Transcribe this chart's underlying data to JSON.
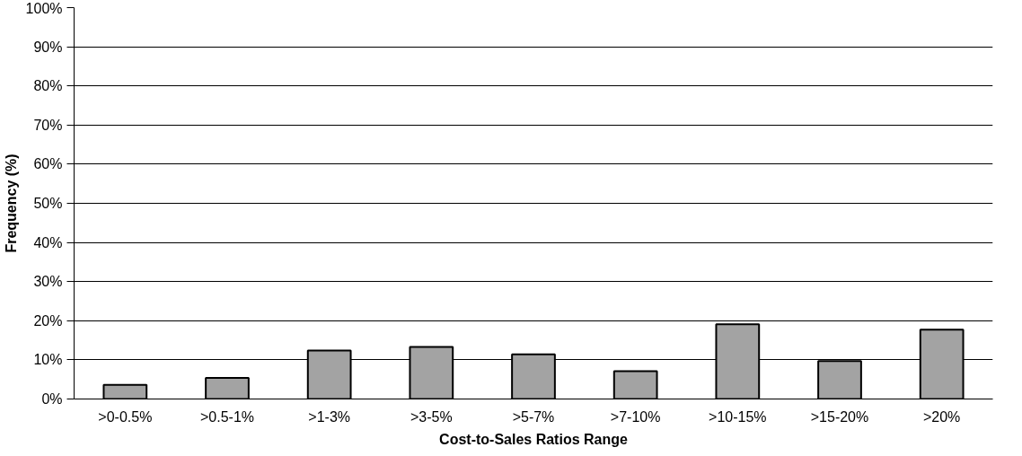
{
  "chart_data": {
    "type": "bar",
    "xlabel": "Cost-to-Sales Ratios Range",
    "ylabel": "Frequency (%)",
    "categories": [
      ">0-0.5%",
      ">0.5-1%",
      ">1-3%",
      ">3-5%",
      ">5-7%",
      ">7-10%",
      ">10-15%",
      ">15-20%",
      ">20%"
    ],
    "values": [
      3.6,
      5.4,
      12.4,
      13.3,
      11.4,
      7.1,
      19.1,
      9.7,
      17.7
    ],
    "color": "#a3a3a3",
    "ylim": [
      0,
      100
    ],
    "yticks": [
      {
        "value": 0,
        "label": "0%"
      },
      {
        "value": 10,
        "label": "10%"
      },
      {
        "value": 20,
        "label": "20%"
      },
      {
        "value": 30,
        "label": "30%"
      },
      {
        "value": 40,
        "label": "40%"
      },
      {
        "value": 50,
        "label": "50%"
      },
      {
        "value": 60,
        "label": "60%"
      },
      {
        "value": 70,
        "label": "70%"
      },
      {
        "value": 80,
        "label": "80%"
      },
      {
        "value": 90,
        "label": "90%"
      },
      {
        "value": 100,
        "label": "100%"
      }
    ],
    "grid": "y"
  }
}
